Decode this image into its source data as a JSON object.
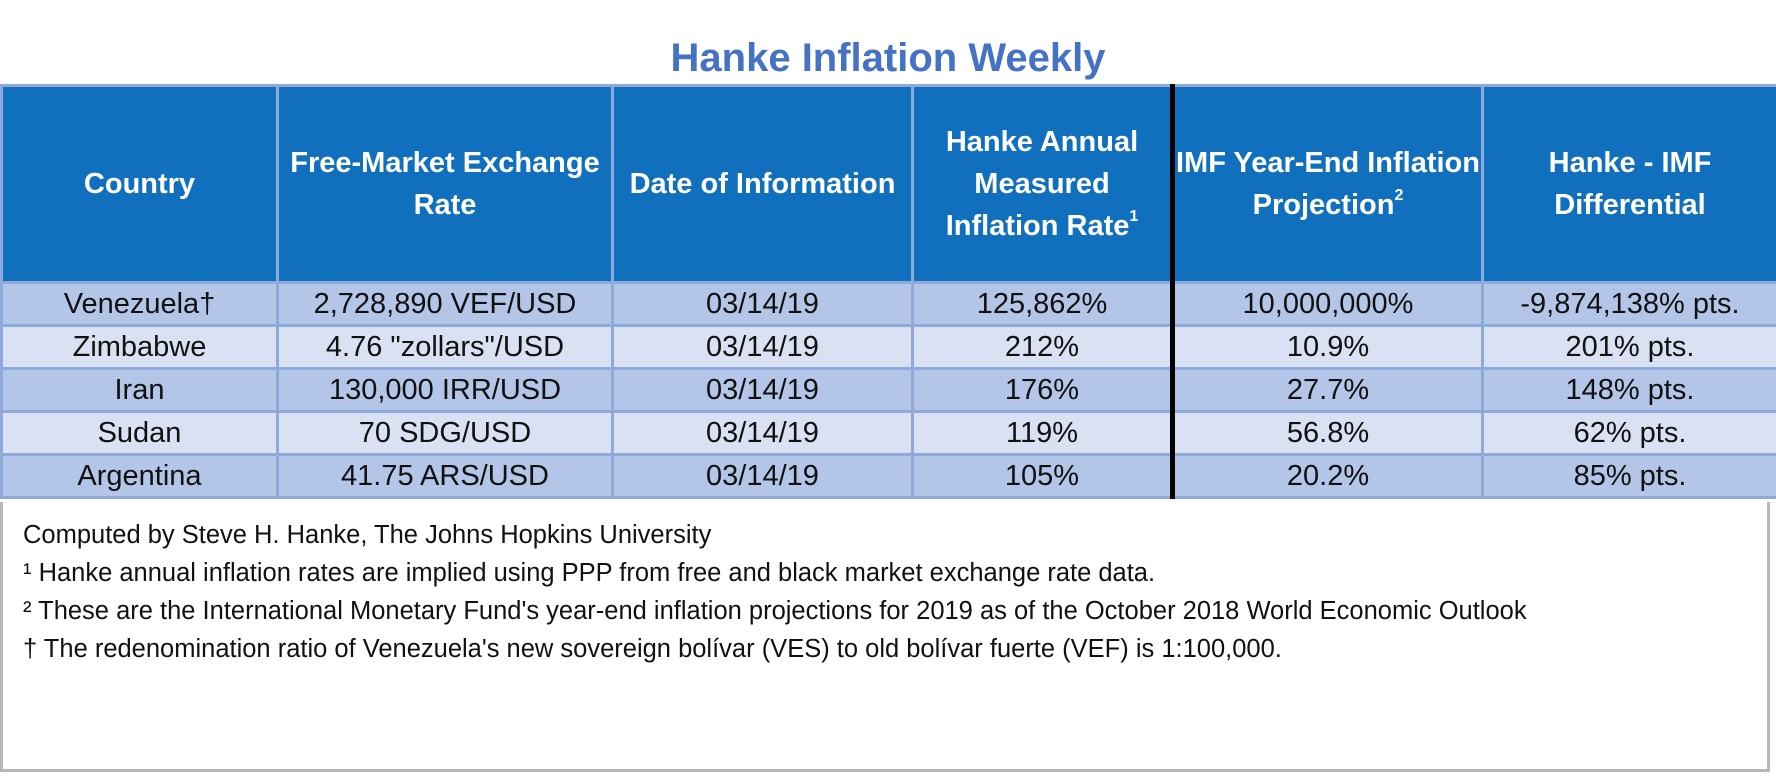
{
  "title": "Hanke Inflation Weekly",
  "columns": [
    {
      "text": "Country",
      "sup": ""
    },
    {
      "text": "Free-Market Exchange Rate",
      "sup": ""
    },
    {
      "text": "Date of Information",
      "sup": ""
    },
    {
      "text": "Hanke Annual Measured Inflation Rate",
      "sup": "1"
    },
    {
      "text": "IMF Year-End Inflation Projection",
      "sup": "2"
    },
    {
      "text": "Hanke - IMF Differential",
      "sup": ""
    }
  ],
  "rows": [
    [
      "Venezuela†",
      "2,728,890 VEF/USD",
      "03/14/19",
      "125,862%",
      "10,000,000%",
      "-9,874,138% pts."
    ],
    [
      "Zimbabwe",
      "4.76 \"zollars\"/USD",
      "03/14/19",
      "212%",
      "10.9%",
      "201% pts."
    ],
    [
      "Iran",
      "130,000 IRR/USD",
      "03/14/19",
      "176%",
      "27.7%",
      "148% pts."
    ],
    [
      "Sudan",
      "70 SDG/USD",
      "03/14/19",
      "119%",
      "56.8%",
      "62% pts."
    ],
    [
      "Argentina",
      "41.75 ARS/USD",
      "03/14/19",
      "105%",
      "20.2%",
      "85% pts."
    ]
  ],
  "notes": [
    "Computed by Steve H. Hanke, The Johns Hopkins University",
    "¹ Hanke annual inflation rates are implied using PPP from free and black market exchange rate data.",
    "² These are the International Monetary Fund's year-end inflation projections for 2019 as of the October 2018 World Economic Outlook",
    "† The redenomination ratio of Venezuela's new sovereign bolívar (VES) to old bolívar fuerte (VEF) is 1:100,000."
  ]
}
